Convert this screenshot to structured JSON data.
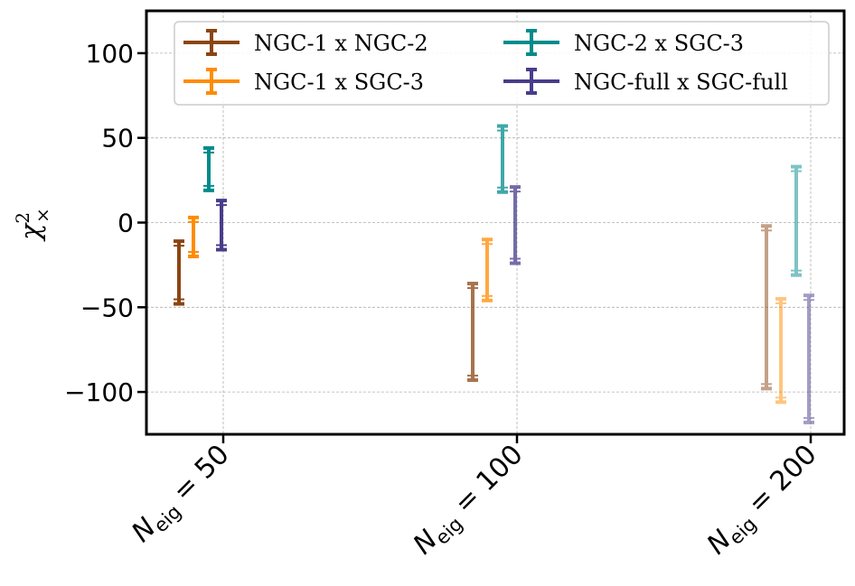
{
  "chart_data": {
    "type": "errorbar",
    "title": "",
    "xlabel": "",
    "ylabel": "χ²×",
    "ylabel_parts": {
      "symbol": "χ",
      "superscript": "2",
      "subscript": "×"
    },
    "ylim": [
      -125,
      125
    ],
    "yticks": [
      100,
      50,
      0,
      -50,
      -100
    ],
    "ytick_labels": [
      "100",
      "50",
      "0",
      "−50",
      "−100"
    ],
    "grid": true,
    "legend_position": "top",
    "categories": [
      "N_eig = 50",
      "N_eig = 100",
      "N_eig = 200"
    ],
    "category_labels": [
      {
        "base": "N",
        "sub": "eig",
        "rest": " = 50"
      },
      {
        "base": "N",
        "sub": "eig",
        "rest": " = 100"
      },
      {
        "base": "N",
        "sub": "eig",
        "rest": " = 200"
      }
    ],
    "series": [
      {
        "name": "NGC-1 x NGC-2",
        "color": "#8B4513",
        "ranges": [
          [
            -48,
            -11
          ],
          [
            -93,
            -36
          ],
          [
            -98,
            -2
          ]
        ]
      },
      {
        "name": "NGC-1 x SGC-3",
        "color": "#FF8C00",
        "ranges": [
          [
            -20,
            3
          ],
          [
            -46,
            -10
          ],
          [
            -106,
            -45
          ]
        ]
      },
      {
        "name": "NGC-2 x SGC-3",
        "color": "#008B8B",
        "ranges": [
          [
            19,
            44
          ],
          [
            18,
            57
          ],
          [
            -31,
            33
          ]
        ]
      },
      {
        "name": "NGC-full x SGC-full",
        "color": "#483D8B",
        "ranges": [
          [
            -16,
            13
          ],
          [
            -24,
            21
          ],
          [
            -118,
            -43
          ]
        ]
      }
    ],
    "opacity_by_category": [
      1.0,
      0.75,
      0.5
    ]
  }
}
